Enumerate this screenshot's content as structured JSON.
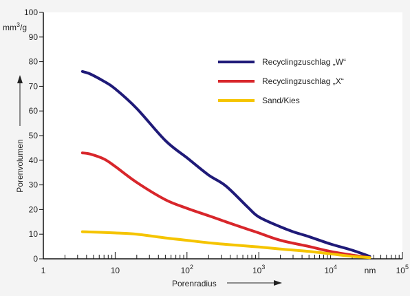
{
  "chart_data": {
    "type": "line",
    "title": "",
    "xlabel": "Porenradius",
    "ylabel": "Porenvolumen",
    "yunit_parts": [
      "mm",
      "3",
      "/g"
    ],
    "xunit": "nm",
    "xscale": "log",
    "xlim": [
      1,
      100000
    ],
    "ylim": [
      0,
      100
    ],
    "grid": false,
    "legend_position": "top-right",
    "x_ticks": [
      {
        "value": 1,
        "base": "1",
        "exp": ""
      },
      {
        "value": 10,
        "base": "10",
        "exp": ""
      },
      {
        "value": 100,
        "base": "10",
        "exp": "2"
      },
      {
        "value": 1000,
        "base": "10",
        "exp": "3"
      },
      {
        "value": 10000,
        "base": "10",
        "exp": "4"
      },
      {
        "value": 100000,
        "base": "10",
        "exp": "5"
      }
    ],
    "y_ticks": [
      0,
      10,
      20,
      30,
      40,
      50,
      60,
      70,
      80,
      90,
      100
    ],
    "series": [
      {
        "name": "Recyclingzuschlag „W“",
        "color": "#1f1a78",
        "x": [
          3.5,
          4.5,
          7,
          10,
          20,
          50,
          100,
          200,
          350,
          700,
          1000,
          2000,
          3000,
          5000,
          10000,
          20000,
          35000
        ],
        "y": [
          76,
          75,
          72,
          69,
          61,
          48,
          41,
          34,
          29.5,
          21,
          17,
          13,
          11,
          9,
          6,
          3.5,
          1
        ]
      },
      {
        "name": "Recyclingzuschlag „X“",
        "color": "#d8262b",
        "x": [
          3.5,
          4.5,
          7,
          10,
          20,
          50,
          100,
          200,
          350,
          700,
          1000,
          2000,
          5000,
          10000,
          20000,
          35000
        ],
        "y": [
          43,
          42.5,
          40.5,
          37.5,
          31,
          24,
          20.5,
          17.5,
          15,
          12,
          10.5,
          7.5,
          5,
          3,
          1.5,
          0.5
        ]
      },
      {
        "name": "Sand/Kies",
        "color": "#f5c400",
        "x": [
          3.5,
          10,
          20,
          50,
          100,
          200,
          500,
          1000,
          2000,
          5000,
          10000,
          20000,
          35000
        ],
        "y": [
          11,
          10.5,
          10,
          8.5,
          7.5,
          6.5,
          5.5,
          4.8,
          4,
          3,
          2,
          1,
          0.5
        ]
      }
    ]
  }
}
